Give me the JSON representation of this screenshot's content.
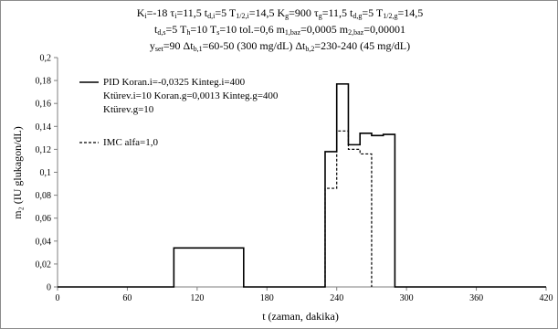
{
  "chart_data": {
    "type": "line",
    "header": {
      "line1": [
        {
          "t": "K"
        },
        {
          "sub": "i"
        },
        {
          "t": "=-18  τ"
        },
        {
          "sub": "i"
        },
        {
          "t": "=11,5  t"
        },
        {
          "sub": "d,i"
        },
        {
          "t": "=5  T"
        },
        {
          "sub": "1/2,i"
        },
        {
          "t": "=14,5  K"
        },
        {
          "sub": "g"
        },
        {
          "t": "=900  τ"
        },
        {
          "sub": "g"
        },
        {
          "t": "=11,5  t"
        },
        {
          "sub": "d,g"
        },
        {
          "t": "=5  T"
        },
        {
          "sub": "1/2,g"
        },
        {
          "t": "=14,5"
        }
      ],
      "line2": [
        {
          "t": "t"
        },
        {
          "sub": "d,s"
        },
        {
          "t": "=5  T"
        },
        {
          "sub": "h"
        },
        {
          "t": "=10  T"
        },
        {
          "sub": "s"
        },
        {
          "t": "=10  tol.=0,6  m"
        },
        {
          "sub": "1,baz"
        },
        {
          "t": "=0,0005  m"
        },
        {
          "sub": "2,baz"
        },
        {
          "t": "=0,00001"
        }
      ],
      "line3": [
        {
          "t": "y"
        },
        {
          "sub": "set"
        },
        {
          "t": "=90  Δt"
        },
        {
          "sub": "b,1"
        },
        {
          "t": "=60-50 (300 mg/dL)  Δt"
        },
        {
          "sub": "b,2"
        },
        {
          "t": "=230-240 (45 mg/dL)"
        }
      ]
    },
    "xlabel": "t (zaman,  dakika)",
    "ylabel": "m₂ (IU glukagon/dL)",
    "xlim": [
      0,
      420
    ],
    "ylim": [
      0,
      0.2
    ],
    "x_ticks": [
      0,
      60,
      120,
      180,
      240,
      300,
      360,
      420
    ],
    "x_tick_labels": [
      "0",
      "60",
      "120",
      "180",
      "240",
      "300",
      "360",
      "420"
    ],
    "y_ticks": [
      0,
      0.02,
      0.04,
      0.06,
      0.08,
      0.1,
      0.12,
      0.14,
      0.16,
      0.18,
      0.2
    ],
    "y_tick_labels": [
      "0",
      "0,02",
      "0,04",
      "0,06",
      "0,08",
      "0,1",
      "0,12",
      "0,14",
      "0,16",
      "0,18",
      "0,2"
    ],
    "grid": false,
    "legend_position": "top-left",
    "series": [
      {
        "name": "PID Koran.i=-0,0325 Kinteg.i=400 Ktürev.i=10 Koran.g=0,0013 Kinteg.g=400 Ktürev.g=10",
        "legend_lines": [
          "PID Koran.i=-0,0325 Kinteg.i=400",
          "Ktürev.i=10 Koran.g=0,0013 Kinteg.g=400",
          "Ktürev.g=10"
        ],
        "style": "solid",
        "color": "#000000",
        "x": [
          0,
          100,
          100,
          160,
          160,
          230,
          230,
          240,
          240,
          250,
          250,
          260,
          260,
          270,
          270,
          280,
          280,
          290,
          290,
          420
        ],
        "y": [
          0,
          0,
          0.034,
          0.034,
          0,
          0,
          0.118,
          0.118,
          0.177,
          0.177,
          0.124,
          0.124,
          0.134,
          0.134,
          0.132,
          0.132,
          0.133,
          0.133,
          0,
          0
        ]
      },
      {
        "name": "IMC alfa=1,0",
        "legend_lines": [
          "IMC alfa=1,0"
        ],
        "style": "dashed",
        "color": "#000000",
        "x": [
          230,
          230,
          240,
          240,
          250,
          250,
          260,
          260,
          270,
          270
        ],
        "y": [
          0,
          0.086,
          0.086,
          0.136,
          0.136,
          0.12,
          0.12,
          0.116,
          0.116,
          0
        ]
      }
    ]
  }
}
